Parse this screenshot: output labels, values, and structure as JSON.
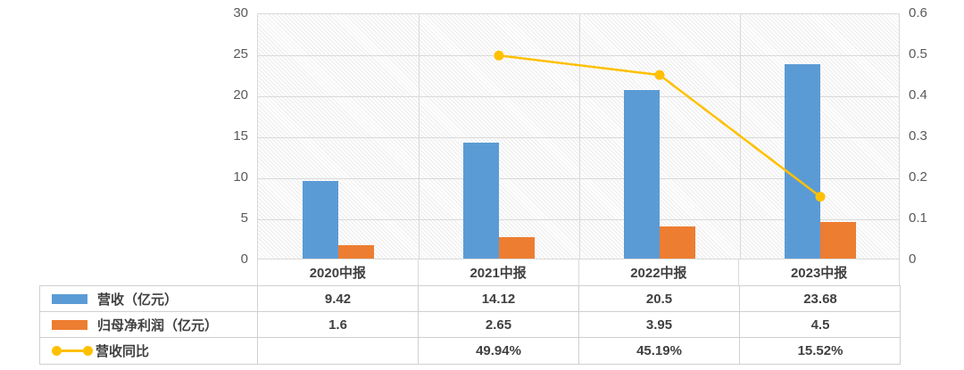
{
  "chart_data": {
    "type": "combo",
    "categories": [
      "2020中报",
      "2021中报",
      "2022中报",
      "2023中报"
    ],
    "series": [
      {
        "key": "revenue",
        "name": "营收（亿元）",
        "type": "bar",
        "axis": "left",
        "color": "#5B9BD5",
        "values": [
          9.42,
          14.12,
          20.5,
          23.68
        ],
        "display": [
          "9.42",
          "14.12",
          "20.5",
          "23.68"
        ]
      },
      {
        "key": "net-profit",
        "name": "归母净利润（亿元）",
        "type": "bar",
        "axis": "left",
        "color": "#ED7D31",
        "values": [
          1.6,
          2.65,
          3.95,
          4.5
        ],
        "display": [
          "1.6",
          "2.65",
          "3.95",
          "4.5"
        ]
      },
      {
        "key": "revenue-yoy",
        "name": "营收同比",
        "type": "line",
        "axis": "right",
        "color": "#FFC000",
        "values": [
          null,
          0.4994,
          0.4519,
          0.1552
        ],
        "display": [
          "",
          "49.94%",
          "45.19%",
          "15.52%"
        ]
      }
    ],
    "left_axis": {
      "min": 0,
      "max": 30,
      "ticks": [
        "0",
        "5",
        "10",
        "15",
        "20",
        "25",
        "30"
      ]
    },
    "right_axis": {
      "min": 0,
      "max": 0.6,
      "ticks": [
        "0",
        "0.1",
        "0.2",
        "0.3",
        "0.4",
        "0.5",
        "0.6"
      ]
    },
    "grid": true,
    "plot_background": "diagonal-hatch",
    "legend_position": "table-left",
    "colors": {
      "grid": "#d9d9d9",
      "axis_text": "#595959",
      "table_text": "#404040",
      "table_border": "#cfcfcf"
    }
  }
}
